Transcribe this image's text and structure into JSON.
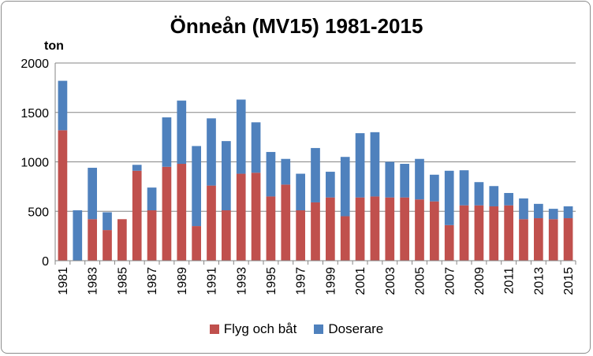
{
  "chart_data": {
    "type": "bar",
    "stacked": true,
    "title": "Önneån (MV15) 1981-2015",
    "ylabel": "ton",
    "xlabel": "",
    "ylim": [
      0,
      2000
    ],
    "yticks": [
      0,
      500,
      1000,
      1500,
      2000
    ],
    "grid": true,
    "legend_position": "bottom",
    "categories": [
      "1981",
      "1982",
      "1983",
      "1984",
      "1985",
      "1986",
      "1987",
      "1988",
      "1989",
      "1990",
      "1991",
      "1992",
      "1993",
      "1994",
      "1995",
      "1996",
      "1997",
      "1998",
      "1999",
      "2000",
      "2001",
      "2002",
      "2003",
      "2004",
      "2005",
      "2006",
      "2007",
      "2008",
      "2009",
      "2010",
      "2011",
      "2012",
      "2013",
      "2014",
      "2015"
    ],
    "xtick_labels": [
      "1981",
      "1983",
      "1985",
      "1987",
      "1989",
      "1991",
      "1993",
      "1995",
      "1997",
      "1999",
      "2001",
      "2003",
      "2005",
      "2007",
      "2009",
      "2011",
      "2013",
      "2015"
    ],
    "series": [
      {
        "name": "Flyg och båt",
        "color": "#c0504d",
        "values": [
          1320,
          0,
          420,
          310,
          420,
          910,
          510,
          950,
          980,
          350,
          760,
          510,
          880,
          890,
          650,
          770,
          510,
          590,
          640,
          450,
          640,
          650,
          640,
          640,
          620,
          600,
          360,
          560,
          560,
          550,
          560,
          420,
          430,
          420,
          430
        ]
      },
      {
        "name": "Doserare",
        "color": "#4f81bd",
        "values": [
          500,
          510,
          520,
          180,
          0,
          60,
          230,
          500,
          640,
          810,
          680,
          700,
          750,
          510,
          450,
          260,
          370,
          550,
          260,
          600,
          650,
          650,
          360,
          340,
          410,
          270,
          550,
          355,
          235,
          205,
          125,
          210,
          145,
          105,
          120
        ]
      }
    ]
  }
}
